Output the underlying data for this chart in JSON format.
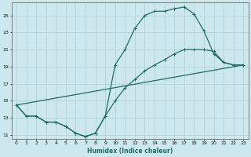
{
  "xlabel": "Humidex (Indice chaleur)",
  "bg_color": "#cce8ee",
  "line_color": "#1e6e62",
  "grid_color": "#aacdd6",
  "xlim": [
    -0.5,
    23.5
  ],
  "ylim": [
    10.5,
    26.5
  ],
  "xticks": [
    0,
    1,
    2,
    3,
    4,
    5,
    6,
    7,
    8,
    9,
    10,
    11,
    12,
    13,
    14,
    15,
    16,
    17,
    18,
    19,
    20,
    21,
    22,
    23
  ],
  "yticks": [
    11,
    13,
    15,
    17,
    19,
    21,
    23,
    25
  ],
  "line1_x": [
    0,
    1,
    2,
    3,
    4,
    5,
    6,
    7,
    8,
    9,
    10,
    11,
    12,
    13,
    14,
    15,
    16,
    17,
    18,
    19,
    20,
    21,
    22,
    23
  ],
  "line1_y": [
    14.5,
    13.2,
    13.2,
    12.5,
    12.5,
    12.0,
    11.2,
    10.8,
    11.2,
    13.2,
    15.0,
    16.5,
    17.5,
    18.5,
    19.2,
    19.8,
    20.5,
    21.0,
    21.0,
    21.0,
    20.8,
    19.5,
    19.2,
    19.2
  ],
  "line2_x": [
    0,
    1,
    2,
    3,
    4,
    5,
    6,
    7,
    8,
    9,
    10,
    11,
    12,
    13,
    14,
    15,
    16,
    17,
    18,
    19,
    20,
    21,
    22,
    23
  ],
  "line2_y": [
    14.5,
    13.2,
    13.2,
    12.5,
    12.5,
    12.0,
    11.2,
    10.8,
    11.2,
    13.2,
    19.2,
    21.0,
    23.5,
    25.0,
    25.5,
    25.5,
    25.8,
    26.0,
    25.2,
    23.2,
    20.5,
    19.5,
    19.2,
    19.2
  ],
  "line3_x": [
    0,
    23
  ],
  "line3_y": [
    14.5,
    19.2
  ],
  "marker_size": 2.2,
  "linewidth": 0.9
}
